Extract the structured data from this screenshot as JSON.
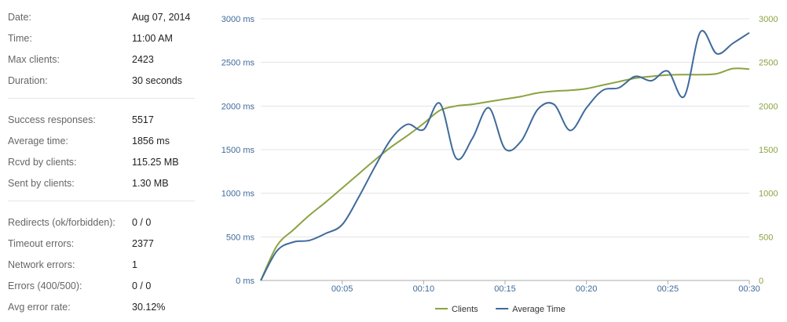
{
  "stats": {
    "groups": [
      [
        {
          "label": "Date:",
          "value": "Aug 07, 2014"
        },
        {
          "label": "Time:",
          "value": "11:00 AM"
        },
        {
          "label": "Max clients:",
          "value": "2423"
        },
        {
          "label": "Duration:",
          "value": "30 seconds"
        }
      ],
      [
        {
          "label": "Success responses:",
          "value": "5517"
        },
        {
          "label": "Average time:",
          "value": "1856 ms"
        },
        {
          "label": "Rcvd by clients:",
          "value": "115.25 MB"
        },
        {
          "label": "Sent by clients:",
          "value": "1.30 MB"
        }
      ],
      [
        {
          "label": "Redirects (ok/forbidden):",
          "value": "0 / 0"
        },
        {
          "label": "Timeout errors:",
          "value": "2377"
        },
        {
          "label": "Network errors:",
          "value": "1"
        },
        {
          "label": "Errors (400/500):",
          "value": "0 / 0"
        },
        {
          "label": "Avg error rate:",
          "value": "30.12%"
        }
      ]
    ]
  },
  "colors": {
    "clients": "#8aa341",
    "average_time": "#3f6a9a",
    "grid": "#e3e3e3",
    "left_axis_text": "#3f6a9a",
    "right_axis_text": "#8aa341"
  },
  "chart_data": {
    "type": "line",
    "title": "",
    "xlabel": "",
    "xlim": [
      0,
      30
    ],
    "x_ticks": [
      5,
      10,
      15,
      20,
      25,
      30
    ],
    "x_tick_labels": [
      "00:05",
      "00:10",
      "00:15",
      "00:20",
      "00:25",
      "00:30"
    ],
    "y_left": {
      "lim": [
        0,
        3000
      ],
      "ticks": [
        0,
        500,
        1000,
        1500,
        2000,
        2500,
        3000
      ],
      "tick_labels": [
        "0 ms",
        "500 ms",
        "1000 ms",
        "1500 ms",
        "2000 ms",
        "2500 ms",
        "3000 ms"
      ]
    },
    "y_right": {
      "lim": [
        0,
        3000
      ],
      "ticks": [
        0,
        500,
        1000,
        1500,
        2000,
        2500,
        3000
      ],
      "tick_labels": [
        "0",
        "500",
        "1000",
        "1500",
        "2000",
        "2500",
        "3000"
      ]
    },
    "grid": "horizontal",
    "legend_position": "bottom-center",
    "series": [
      {
        "name": "Clients",
        "axis": "right",
        "color": "#8aa341",
        "x": [
          0,
          1,
          2,
          3,
          4,
          5,
          6,
          7,
          8,
          9,
          10,
          11,
          12,
          13,
          14,
          15,
          16,
          17,
          18,
          19,
          20,
          21,
          22,
          23,
          24,
          25,
          26,
          27,
          28,
          29,
          30
        ],
        "y": [
          0,
          400,
          580,
          750,
          900,
          1060,
          1220,
          1380,
          1530,
          1660,
          1800,
          1950,
          2000,
          2020,
          2050,
          2080,
          2110,
          2150,
          2170,
          2180,
          2200,
          2240,
          2280,
          2320,
          2340,
          2355,
          2360,
          2360,
          2370,
          2430,
          2423
        ]
      },
      {
        "name": "Average Time",
        "axis": "left",
        "color": "#3f6a9a",
        "x": [
          0,
          1,
          2,
          3,
          4,
          5,
          6,
          7,
          8,
          9,
          10,
          11,
          12,
          13,
          14,
          15,
          16,
          17,
          18,
          19,
          20,
          21,
          22,
          23,
          24,
          25,
          26,
          27,
          28,
          29,
          30
        ],
        "y": [
          0,
          340,
          440,
          460,
          540,
          640,
          950,
          1300,
          1620,
          1790,
          1730,
          2030,
          1400,
          1630,
          1980,
          1510,
          1600,
          1960,
          2020,
          1720,
          1980,
          2180,
          2210,
          2340,
          2290,
          2400,
          2110,
          2850,
          2600,
          2720,
          2840
        ]
      }
    ]
  }
}
